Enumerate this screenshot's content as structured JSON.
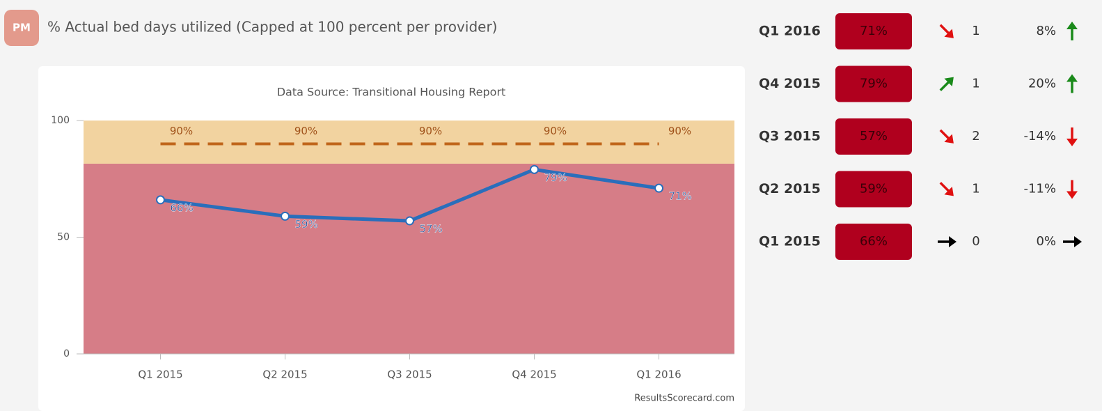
{
  "header": {
    "badge": "PM",
    "title": "% Actual bed days utilized (Capped at 100 percent per provider)"
  },
  "chart_data": {
    "type": "line",
    "subtitle": "Data Source: Transitional Housing Report",
    "categories": [
      "Q1 2015",
      "Q2 2015",
      "Q3 2015",
      "Q4 2015",
      "Q1 2016"
    ],
    "series": [
      {
        "color": "#2a6ebb",
        "values": [
          66,
          59,
          57,
          79,
          71
        ],
        "value_labels": [
          "66%",
          "59%",
          "57%",
          "79%",
          "71%"
        ]
      }
    ],
    "ylim": [
      0,
      100
    ],
    "yticks": [
      0,
      50,
      100
    ],
    "grid": false,
    "bands": [
      {
        "from": 0,
        "to": 81.5,
        "color": "#d67d87"
      },
      {
        "from": 81.5,
        "to": 100,
        "color": "#f2d3a0"
      }
    ],
    "target": {
      "value": 90,
      "label": "90%",
      "color": "#c0651a"
    },
    "credit": "ResultsScorecard.com"
  },
  "table": {
    "rows": [
      {
        "period": "Q1 2016",
        "value": "71%",
        "trend": "down",
        "change": "1",
        "percent": "8%",
        "direction": "up"
      },
      {
        "period": "Q4 2015",
        "value": "79%",
        "trend": "up",
        "change": "1",
        "percent": "20%",
        "direction": "up"
      },
      {
        "period": "Q3 2015",
        "value": "57%",
        "trend": "down",
        "change": "2",
        "percent": "-14%",
        "direction": "down"
      },
      {
        "period": "Q2 2015",
        "value": "59%",
        "trend": "down",
        "change": "1",
        "percent": "-11%",
        "direction": "down"
      },
      {
        "period": "Q1 2015",
        "value": "66%",
        "trend": "flat",
        "change": "0",
        "percent": "0%",
        "direction": "flat"
      }
    ]
  }
}
